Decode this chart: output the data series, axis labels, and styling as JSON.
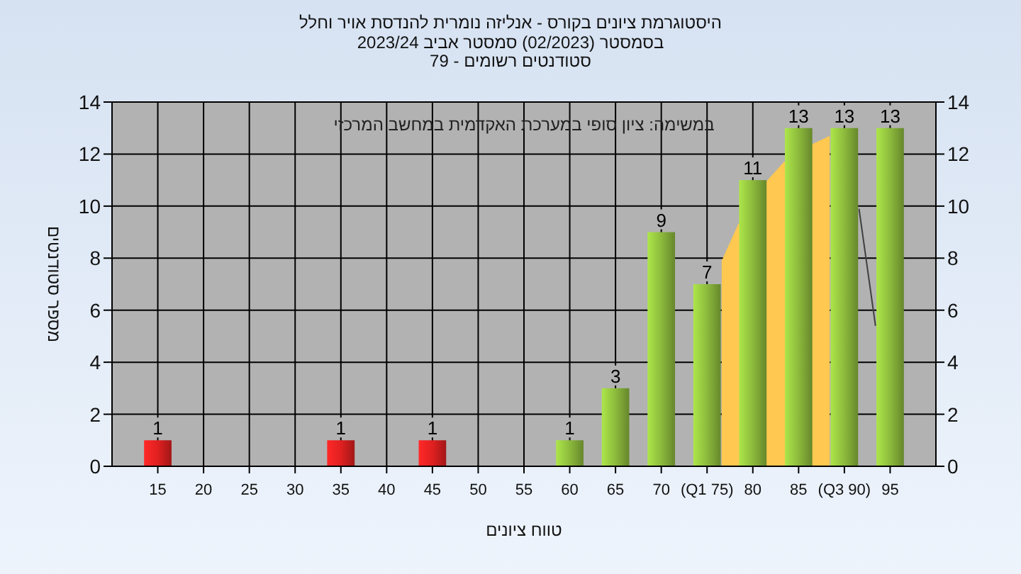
{
  "chart_data": {
    "type": "bar",
    "title": "היסטוגרמת ציונים בקורס - אנליזה נומרית להנדסת אויר וחלל",
    "subtitle": "בסמסטר  (02/2023)  סמסטר אביב 2023/24\nסטודנטים רשומים - 79",
    "xlabel": "טווח ציונים",
    "ylabel": "מספר סטודנטים",
    "annotations": [
      "במשימה: ציון סופי במערכת האקדמית במחשב המרכזי"
    ],
    "x": [
      15,
      35,
      45,
      60,
      65,
      70,
      75,
      80,
      85,
      90,
      95
    ],
    "series": [
      {
        "type": "area",
        "x": [
          76.6,
          78.4,
          81.6,
          83.4,
          86.6,
          88.4
        ],
        "values": [
          7.9,
          9.3,
          11,
          11.7,
          12.4,
          12.7
        ],
        "color": "#ffc850"
      },
      {
        "type": "line",
        "x": [
          91.6,
          93.4
        ],
        "values": [
          9.9,
          5.4
        ],
        "color": "#404040"
      },
      {
        "values": [
          1,
          1,
          1,
          1,
          3,
          9,
          7,
          11,
          13,
          13,
          13
        ],
        "value_labels": [
          "1",
          "1",
          "1",
          "1",
          "3",
          "9",
          "7",
          "11",
          "13",
          "13",
          "13"
        ],
        "colors": [
          "#e02020",
          "#e02020",
          "#e02020",
          "#8cba3c",
          "#8cba3c",
          "#8cba3c",
          "#8cba3c",
          "#8cba3c",
          "#8cba3c",
          "#8cba3c",
          "#8cba3c"
        ]
      }
    ],
    "xlim": [
      10,
      100
    ],
    "xticks": [
      15,
      20,
      25,
      30,
      35,
      40,
      45,
      50,
      55,
      60,
      65,
      70,
      {
        "value": 75,
        "label": "(Q1 75)"
      },
      80,
      85,
      {
        "value": 90,
        "label": "(Q3 90)"
      },
      95
    ],
    "ylim": [
      0,
      14
    ],
    "yticks": [
      0,
      2,
      4,
      6,
      8,
      10,
      12,
      14
    ],
    "y2lim": [
      0,
      14
    ],
    "y2ticks": [
      0,
      2,
      4,
      6,
      8,
      10,
      12,
      14
    ],
    "grid": true
  }
}
